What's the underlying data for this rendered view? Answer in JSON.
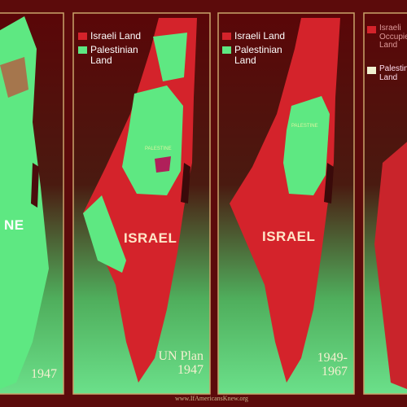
{
  "panels": [
    {
      "country_label": "NE",
      "year": "1947"
    },
    {
      "legend": [
        "Israeli Land",
        "Palestinian Land"
      ],
      "region_label": "PALESTINE",
      "country_label": "ISRAEL",
      "caption": [
        "UN Plan",
        "1947"
      ]
    },
    {
      "legend": [
        "Israeli Land",
        "Palestinian Land"
      ],
      "region_label": "PALESTINE",
      "country_label": "ISRAEL",
      "caption": [
        "1949-",
        "1967"
      ]
    },
    {
      "legend": [
        "Israeli Occupied Land",
        "Palestinian Land"
      ]
    }
  ],
  "footer": "www.IfAmericansKnew.org"
}
